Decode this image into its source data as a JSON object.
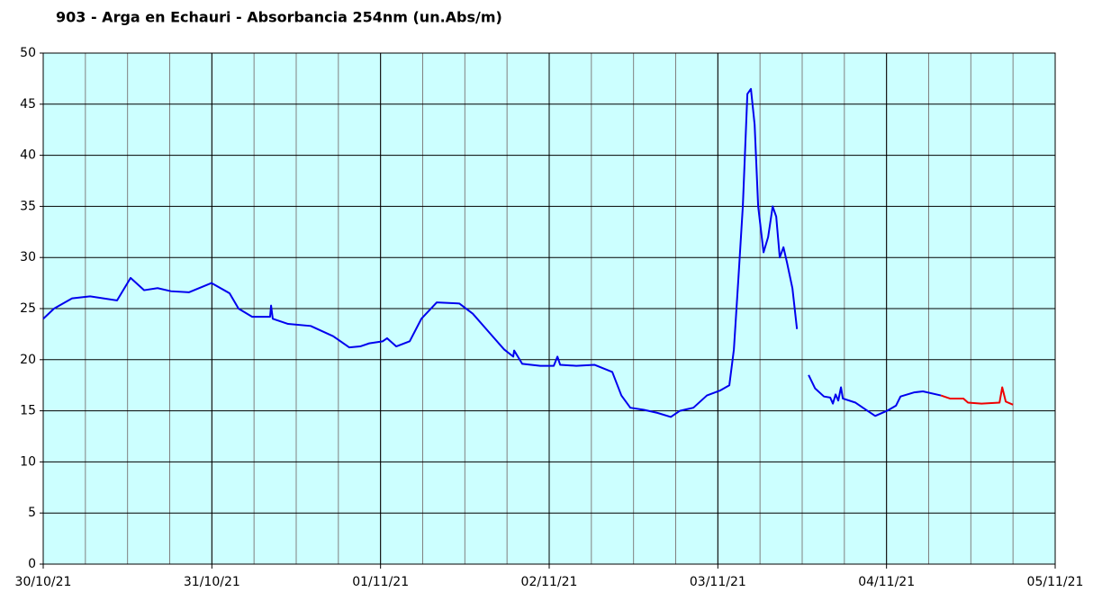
{
  "chart_data": {
    "type": "line",
    "title": "903 - Arga en Echauri - Absorbancia 254nm (un.Abs/m)",
    "xlim": [
      0,
      6
    ],
    "xticks": [
      {
        "value": 0,
        "label": "30/10/21"
      },
      {
        "value": 1,
        "label": "31/10/21"
      },
      {
        "value": 2,
        "label": "01/11/21"
      },
      {
        "value": 3,
        "label": "02/11/21"
      },
      {
        "value": 4,
        "label": "03/11/21"
      },
      {
        "value": 5,
        "label": "04/11/21"
      },
      {
        "value": 6,
        "label": "05/11/21"
      }
    ],
    "x_minor_step": 0.25,
    "ylim": [
      0,
      50
    ],
    "yticks": [
      0,
      5,
      10,
      15,
      20,
      25,
      30,
      35,
      40,
      45,
      50
    ],
    "grid": true,
    "background": "#ccffff",
    "series": [
      {
        "color": "#0000ee",
        "x": [
          0,
          0.064,
          0.171,
          0.278,
          0.438,
          0.518,
          0.598,
          0.678,
          0.758,
          0.865,
          0.998,
          1.105,
          1.158,
          1.239,
          1.345,
          1.351,
          1.361,
          1.452,
          1.586,
          1.719,
          1.815,
          1.879,
          1.933,
          2.013,
          2.039,
          2.093,
          2.173,
          2.242,
          2.333,
          2.467,
          2.547,
          2.653,
          2.733,
          2.787,
          2.792,
          2.84,
          2.947,
          3.027,
          3.049,
          3.065,
          3.161,
          3.268,
          3.374,
          3.428,
          3.481,
          3.561,
          3.641,
          3.721,
          3.775,
          3.855,
          3.935,
          4.015,
          4.068,
          4.095,
          4.122,
          4.148,
          4.175,
          4.196,
          4.218,
          4.239,
          4.271,
          4.298,
          4.325,
          4.346,
          4.367,
          4.389,
          4.41,
          4.442,
          4.469,
          null,
          4.538,
          4.576,
          4.629,
          4.666,
          4.682,
          4.698,
          4.714,
          4.73,
          4.741,
          4.816,
          4.869,
          4.933,
          5.003,
          5.056,
          5.083,
          5.163,
          5.216,
          5.323
        ],
        "values": [
          24,
          25,
          26,
          26.2,
          25.8,
          28,
          26.8,
          27,
          26.7,
          26.6,
          27.5,
          26.5,
          25,
          24.2,
          24.2,
          25.3,
          24,
          23.5,
          23.3,
          22.3,
          21.2,
          21.3,
          21.6,
          21.8,
          22.1,
          21.3,
          21.8,
          24,
          25.6,
          25.5,
          24.5,
          22.5,
          21,
          20.3,
          20.9,
          19.6,
          19.4,
          19.4,
          20.3,
          19.5,
          19.4,
          19.5,
          18.8,
          16.5,
          15.3,
          15.1,
          14.8,
          14.4,
          15,
          15.3,
          16.5,
          17,
          17.5,
          21,
          28,
          35,
          46,
          46.5,
          43,
          35,
          30.5,
          32,
          35,
          34,
          30,
          31,
          29.5,
          27,
          23,
          null,
          18.5,
          17.2,
          16.4,
          16.3,
          15.7,
          16.6,
          16,
          17.3,
          16.2,
          15.8,
          15.2,
          14.5,
          15,
          15.5,
          16.4,
          16.8,
          16.9,
          16.5
        ]
      },
      {
        "color": "#ee0000",
        "x": [
          5.323,
          5.376,
          5.456,
          5.483,
          5.563,
          5.67,
          5.686,
          5.707,
          5.75
        ],
        "values": [
          16.5,
          16.2,
          16.2,
          15.8,
          15.7,
          15.8,
          17.3,
          15.9,
          15.6
        ]
      }
    ]
  }
}
